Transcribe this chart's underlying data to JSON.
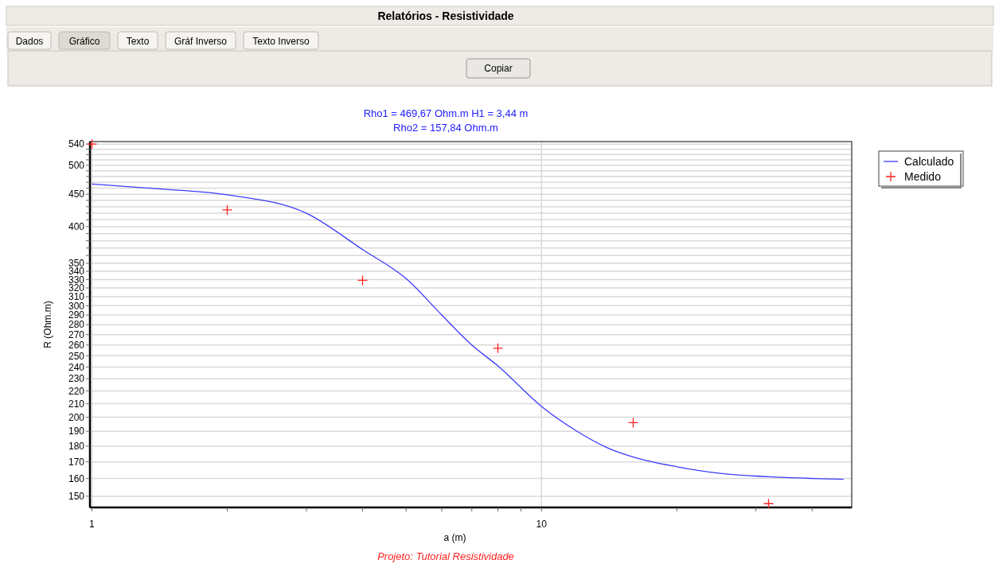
{
  "chart_data": {
    "type": "line",
    "title": "Relatórios - Resistividade",
    "subtitle": "Rho1 =  469,67 Ohm.m H1 =  3,44 m\nRho2 =  157,84 Ohm.m",
    "xlabel": "a (m)",
    "ylabel": "R (Ohm.m)",
    "annotations": [
      "Projeto: Tutorial Resistividade",
      "Dados",
      "Gráfico",
      "Texto",
      "Gráf Inverso",
      "Texto Inverso",
      "Copiar"
    ],
    "log": "xy",
    "grid": true,
    "legend": "top right",
    "xlim": [
      0.99,
      49
    ],
    "xticks": [
      1,
      {
        "value": 2,
        "label": null
      },
      {
        "value": 3,
        "label": null
      },
      {
        "value": 4,
        "label": null
      },
      {
        "value": 5,
        "label": null
      },
      {
        "value": 6,
        "label": null
      },
      {
        "value": 7,
        "label": null
      },
      {
        "value": 8,
        "label": null
      },
      {
        "value": 9,
        "label": null
      },
      10,
      {
        "value": 20,
        "label": null
      },
      {
        "value": 30,
        "label": null
      },
      {
        "value": 40,
        "label": null
      }
    ],
    "ylim": [
      144,
      545
    ],
    "yticks": [
      150,
      160,
      170,
      180,
      190,
      200,
      210,
      220,
      230,
      240,
      250,
      260,
      270,
      280,
      290,
      300,
      310,
      320,
      330,
      340,
      350,
      {
        "value": 360,
        "label": null
      },
      {
        "value": 370,
        "label": null
      },
      {
        "value": 380,
        "label": null
      },
      {
        "value": 390,
        "label": null
      },
      400,
      {
        "value": 410,
        "label": null
      },
      {
        "value": 420,
        "label": null
      },
      {
        "value": 430,
        "label": null
      },
      {
        "value": 440,
        "label": null
      },
      450,
      {
        "value": 460,
        "label": null
      },
      {
        "value": 470,
        "label": null
      },
      {
        "value": 480,
        "label": null
      },
      {
        "value": 490,
        "label": null
      },
      500,
      {
        "value": 510,
        "label": null
      },
      {
        "value": 520,
        "label": null
      },
      {
        "value": 530,
        "label": null
      },
      540
    ],
    "series": [
      {
        "name": "Calculado",
        "color": "#3c3cff",
        "marker": "none",
        "line_style": "solid",
        "x": [
          1,
          1.4,
          2,
          3,
          4,
          5,
          6,
          7,
          8,
          10,
          12,
          14,
          16,
          20,
          25,
          32,
          40,
          47
        ],
        "values": [
          467,
          459,
          449,
          420,
          368,
          331,
          290,
          260,
          241,
          208,
          190,
          179,
          173,
          167,
          163,
          161,
          160,
          159.5
        ]
      },
      {
        "name": "Medido",
        "type": "scatter",
        "color": "#ff2020",
        "marker": "cross",
        "x": [
          1,
          2,
          4,
          8,
          16,
          32
        ],
        "values": [
          540,
          425,
          329,
          257,
          196,
          146
        ]
      }
    ]
  }
}
